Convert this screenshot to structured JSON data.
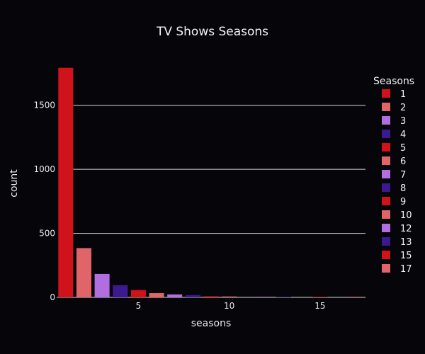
{
  "chart_data": {
    "type": "bar",
    "title": "TV Shows Seasons",
    "xlabel": "seasons",
    "ylabel": "count",
    "x_ticks": [
      5,
      10,
      15
    ],
    "y_ticks": [
      0,
      500,
      1000,
      1500
    ],
    "xlim": [
      0.5,
      17.5
    ],
    "ylim": [
      0,
      1880
    ],
    "grid": true,
    "legend": {
      "title": "Seasons",
      "placement": "right"
    },
    "series": [
      {
        "name": "1",
        "x": 1,
        "value": 1793,
        "color": "#d0121b"
      },
      {
        "name": "2",
        "x": 2,
        "value": 385,
        "color": "#e06468"
      },
      {
        "name": "3",
        "x": 3,
        "value": 183,
        "color": "#b06ee0"
      },
      {
        "name": "4",
        "x": 4,
        "value": 95,
        "color": "#3b1a8f"
      },
      {
        "name": "5",
        "x": 5,
        "value": 57,
        "color": "#d0121b"
      },
      {
        "name": "6",
        "x": 6,
        "value": 33,
        "color": "#e06468"
      },
      {
        "name": "7",
        "x": 7,
        "value": 23,
        "color": "#b06ee0"
      },
      {
        "name": "8",
        "x": 8,
        "value": 17,
        "color": "#3b1a8f"
      },
      {
        "name": "9",
        "x": 9,
        "value": 9,
        "color": "#d0121b"
      },
      {
        "name": "10",
        "x": 10,
        "value": 7,
        "color": "#e06468"
      },
      {
        "name": "12",
        "x": 12,
        "value": 2,
        "color": "#b06ee0"
      },
      {
        "name": "13",
        "x": 13,
        "value": 3,
        "color": "#3b1a8f"
      },
      {
        "name": "15",
        "x": 15,
        "value": 2,
        "color": "#d0121b"
      },
      {
        "name": "17",
        "x": 17,
        "value": 1,
        "color": "#e06468"
      }
    ]
  }
}
